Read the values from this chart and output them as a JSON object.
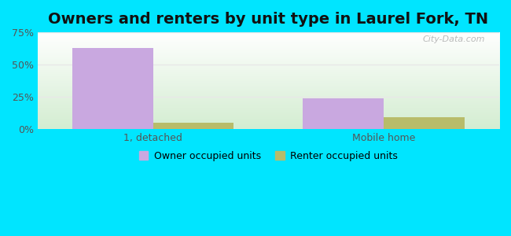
{
  "title": "Owners and renters by unit type in Laurel Fork, TN",
  "categories": [
    "1, detached",
    "Mobile home"
  ],
  "owner_values": [
    63.0,
    24.0
  ],
  "renter_values": [
    5.0,
    9.0
  ],
  "owner_color": "#c9a8e0",
  "renter_color": "#b8bc6a",
  "owner_label": "Owner occupied units",
  "renter_label": "Renter occupied units",
  "ylim": [
    0,
    75
  ],
  "yticks": [
    0,
    25,
    50,
    75
  ],
  "yticklabels": [
    "0%",
    "25%",
    "50%",
    "75%"
  ],
  "background_outer": "#00e5ff",
  "background_plot_topleft": "#d4edda",
  "background_plot_topright": "#ffffff",
  "background_plot_bottomleft": "#d4edda",
  "background_plot_bottomright": "#ffffff",
  "bar_width": 0.35,
  "title_fontsize": 14,
  "watermark": "City-Data.com",
  "grid_color": "#e8e8e8"
}
